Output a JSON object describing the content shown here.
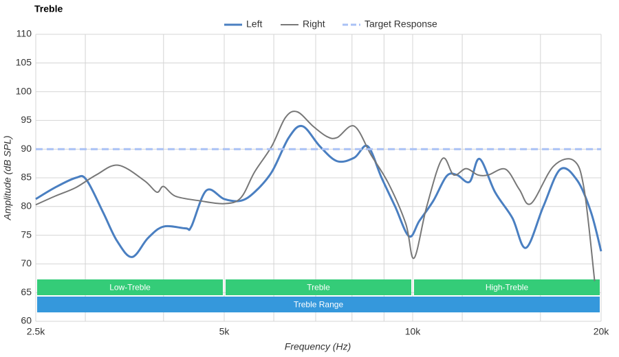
{
  "chart_data": {
    "type": "line",
    "title": "Treble",
    "x_label": "Frequency (Hz)",
    "y_label": "Amplitude (dB SPL)",
    "x_scale": "log",
    "xlim": [
      2500,
      20000
    ],
    "ylim": [
      60,
      110
    ],
    "xticks": [
      {
        "value": 2500,
        "label": "2.5k"
      },
      {
        "value": 5000,
        "label": "5k"
      },
      {
        "value": 10000,
        "label": "10k"
      },
      {
        "value": 20000,
        "label": "20k"
      }
    ],
    "xgrid": [
      3000,
      4000,
      6000,
      7000,
      8000,
      9000,
      12000,
      16000
    ],
    "yticks": [
      60,
      65,
      70,
      75,
      80,
      85,
      90,
      95,
      100,
      105,
      110
    ],
    "grid": true,
    "legend": "top",
    "series": [
      {
        "name": "Left",
        "color": "#4a7fc1",
        "width": 3,
        "x": [
          2500,
          2683,
          2896,
          3010,
          3202,
          3371,
          3562,
          3777,
          4000,
          4340,
          4430,
          4683,
          5000,
          5313,
          5590,
          5955,
          6340,
          6668,
          7107,
          7572,
          8066,
          8475,
          8920,
          9375,
          9870,
          10250,
          10790,
          11330,
          11770,
          12330,
          12790,
          13540,
          14430,
          15170,
          16170,
          17220,
          18330,
          19270,
          20000
        ],
        "values": [
          81.3,
          83.3,
          85.0,
          84.7,
          79,
          74,
          71.2,
          74.5,
          76.5,
          76.2,
          76.5,
          82.8,
          81.3,
          81.0,
          82.5,
          86,
          92,
          94,
          90.5,
          87.9,
          88.5,
          90.5,
          85,
          80,
          74.8,
          77.5,
          81,
          85.3,
          85.5,
          84.3,
          88.3,
          82.5,
          78,
          72.8,
          80,
          86.5,
          84.5,
          79,
          72.2
        ]
      },
      {
        "name": "Right",
        "color": "#777777",
        "width": 2,
        "x": [
          2500,
          2683,
          2896,
          3122,
          3385,
          3728,
          3902,
          4000,
          4178,
          4565,
          5000,
          5313,
          5590,
          5955,
          6262,
          6540,
          6930,
          7290,
          7572,
          8066,
          8580,
          9150,
          9750,
          10050,
          10530,
          11150,
          11630,
          12170,
          12710,
          13210,
          14070,
          14800,
          15450,
          16780,
          18090,
          18790,
          19530
        ],
        "values": [
          80.3,
          81.8,
          83.3,
          85.5,
          87.2,
          84.5,
          82.5,
          83.5,
          81.8,
          81,
          80.5,
          81.5,
          86,
          90.5,
          95.5,
          96.5,
          94,
          92.2,
          92,
          94,
          89,
          84,
          77,
          71,
          80,
          88.3,
          85.5,
          86.6,
          85.5,
          85.5,
          86.5,
          83,
          80.5,
          87,
          88,
          83,
          67
        ]
      },
      {
        "name": "Target Response",
        "color": "#a9c1f5",
        "width": 3,
        "dashed": true,
        "x": [
          2500,
          20000
        ],
        "values": [
          90,
          90
        ]
      }
    ],
    "bands": [
      {
        "label": "Low-Treble",
        "start": 2500,
        "end": 5000,
        "color": "#34cc78",
        "row": 0
      },
      {
        "label": "Treble",
        "start": 5000,
        "end": 10000,
        "color": "#34cc78",
        "row": 0
      },
      {
        "label": "High-Treble",
        "start": 10000,
        "end": 20000,
        "color": "#34cc78",
        "row": 0
      },
      {
        "label": "Treble Range",
        "start": 2500,
        "end": 20000,
        "color": "#3598dc",
        "row": 1
      }
    ]
  }
}
